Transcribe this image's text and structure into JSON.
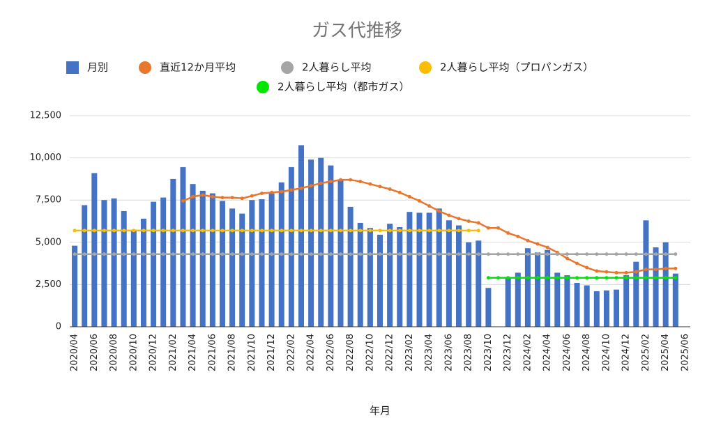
{
  "chart_data": {
    "type": "bar",
    "title": "ガス代推移",
    "x_label": "年月",
    "categories": [
      "2020/04",
      null,
      "2020/06",
      null,
      "2020/08",
      null,
      "2020/10",
      null,
      "2020/12",
      null,
      "2021/02",
      null,
      "2021/04",
      null,
      "2021/06",
      null,
      "2021/08",
      null,
      "2021/10",
      null,
      "2021/12",
      null,
      "2022/02",
      null,
      "2022/04",
      null,
      "2022/06",
      null,
      "2022/08",
      null,
      "2022/10",
      null,
      "2022/12",
      null,
      "2023/02",
      null,
      "2023/04",
      null,
      "2023/06",
      null,
      "2023/08",
      null,
      "2023/10",
      null,
      "2023/12",
      null,
      "2024/02",
      null,
      "2024/04",
      null,
      "2024/06",
      null,
      "2024/08",
      null,
      "2024/10",
      null,
      "2024/12",
      null,
      "2025/02",
      null,
      "2025/04",
      null,
      "2025/06"
    ],
    "series": [
      {
        "name": "月別",
        "kind": "bar",
        "color": "#4472c4",
        "values": [
          4800,
          7200,
          9100,
          7500,
          7600,
          6850,
          5750,
          6400,
          7400,
          7650,
          8750,
          9450,
          8450,
          8050,
          7900,
          7450,
          7000,
          6700,
          7500,
          7550,
          7900,
          8550,
          9450,
          10750,
          9900,
          10000,
          9550,
          8700,
          7100,
          6150,
          5850,
          5450,
          6100,
          5900,
          6800,
          6750,
          6750,
          7000,
          6300,
          6000,
          5000,
          5100,
          2300,
          null,
          2850,
          3200,
          4650,
          4400,
          4550,
          3200,
          3050,
          2600,
          2450,
          2100,
          2150,
          2200,
          3050,
          3850,
          6300,
          4700,
          5000,
          3150,
          null
        ]
      },
      {
        "name": "直近12か月平均",
        "kind": "line",
        "color": "#e8762c",
        "values": [
          null,
          null,
          null,
          null,
          null,
          null,
          null,
          null,
          null,
          null,
          null,
          7450,
          7700,
          7800,
          7700,
          7650,
          7650,
          7600,
          7750,
          7900,
          7950,
          8000,
          8100,
          8200,
          8350,
          8500,
          8600,
          8700,
          8700,
          8600,
          8450,
          8300,
          8150,
          7950,
          7700,
          7450,
          7150,
          6850,
          6600,
          6400,
          6250,
          6150,
          5850,
          5850,
          5550,
          5350,
          5100,
          4900,
          4700,
          4400,
          4050,
          3750,
          3500,
          3300,
          3250,
          3200,
          3200,
          3250,
          3400,
          3400,
          3450,
          3450,
          null
        ]
      },
      {
        "name": "2人暮らし平均",
        "kind": "line",
        "color": "#a5a5a5",
        "values": [
          4300,
          4300,
          4300,
          4300,
          4300,
          4300,
          4300,
          4300,
          4300,
          4300,
          4300,
          4300,
          4300,
          4300,
          4300,
          4300,
          4300,
          4300,
          4300,
          4300,
          4300,
          4300,
          4300,
          4300,
          4300,
          4300,
          4300,
          4300,
          4300,
          4300,
          4300,
          4300,
          4300,
          4300,
          4300,
          4300,
          4300,
          4300,
          4300,
          4300,
          4300,
          4300,
          4300,
          4300,
          4300,
          4300,
          4300,
          4300,
          4300,
          4300,
          4300,
          4300,
          4300,
          4300,
          4300,
          4300,
          4300,
          4300,
          4300,
          4300,
          4300,
          4300,
          null
        ]
      },
      {
        "name": "2人暮らし平均（プロパンガス）",
        "kind": "line",
        "color": "#fbbc04",
        "values": [
          5700,
          5700,
          5700,
          5700,
          5700,
          5700,
          5700,
          5700,
          5700,
          5700,
          5700,
          5700,
          5700,
          5700,
          5700,
          5700,
          5700,
          5700,
          5700,
          5700,
          5700,
          5700,
          5700,
          5700,
          5700,
          5700,
          5700,
          5700,
          5700,
          5700,
          5700,
          5700,
          5700,
          5700,
          5700,
          5700,
          5700,
          5700,
          5700,
          5700,
          5700,
          5700,
          null,
          null,
          null,
          null,
          null,
          null,
          null,
          null,
          null,
          null,
          null,
          null,
          null,
          null,
          null,
          null,
          null,
          null,
          null,
          null,
          null
        ]
      },
      {
        "name": "2人暮らし平均（都市ガス）",
        "kind": "line",
        "color": "#00e600",
        "values": [
          null,
          null,
          null,
          null,
          null,
          null,
          null,
          null,
          null,
          null,
          null,
          null,
          null,
          null,
          null,
          null,
          null,
          null,
          null,
          null,
          null,
          null,
          null,
          null,
          null,
          null,
          null,
          null,
          null,
          null,
          null,
          null,
          null,
          null,
          null,
          null,
          null,
          null,
          null,
          null,
          null,
          null,
          2900,
          2900,
          2900,
          2900,
          2900,
          2900,
          2900,
          2900,
          2900,
          2900,
          2900,
          2900,
          2900,
          2900,
          2900,
          2900,
          2900,
          2900,
          2900,
          2900,
          null
        ]
      }
    ],
    "ylim": [
      0,
      12500
    ],
    "yticks": [
      0,
      {
        "value": 2500,
        "label": "2,500"
      },
      {
        "value": 5000,
        "label": "5,000"
      },
      {
        "value": 7500,
        "label": "7,500"
      },
      {
        "value": 10000,
        "label": "10,000"
      },
      {
        "value": 12500,
        "label": "12,500"
      }
    ],
    "grid": true
  }
}
